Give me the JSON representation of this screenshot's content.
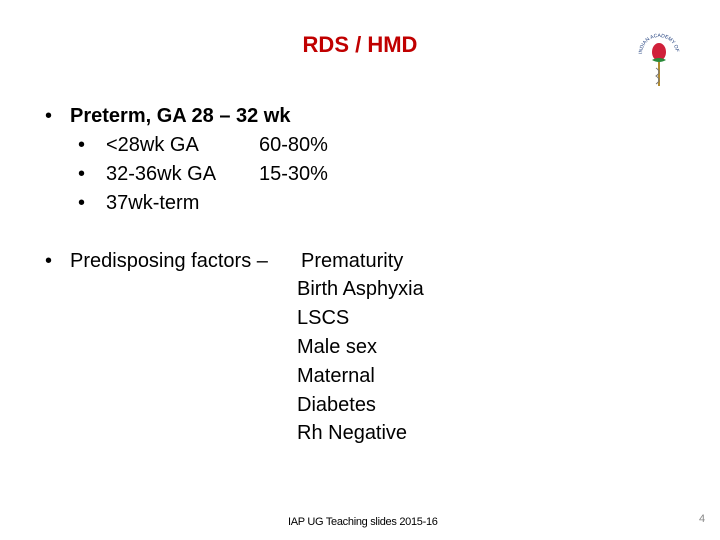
{
  "title": "RDS / HMD",
  "logo": {
    "text": "INDIAN ACADEMY OF PEDIATRICS",
    "icon": "rose-caduceus-logo"
  },
  "bullets": [
    {
      "text": "Preterm, GA 28 – 32 wk",
      "sub": [
        {
          "label": "<28wk GA",
          "value": "60-80%"
        },
        {
          "label": "32-36wk GA",
          "value": "15-30%"
        },
        {
          "label": "37wk-term",
          "value": ""
        }
      ]
    },
    {
      "text": "Predisposing factors –",
      "factors": [
        "Prematurity",
        "Birth Asphyxia",
        "LSCS",
        "Male sex",
        "Maternal",
        "Diabetes",
        "Rh Negative"
      ]
    }
  ],
  "bullet_char": "•",
  "footer": "IAP UG Teaching slides 2015-16",
  "page_number": "4",
  "colors": {
    "title": "#c00000"
  }
}
